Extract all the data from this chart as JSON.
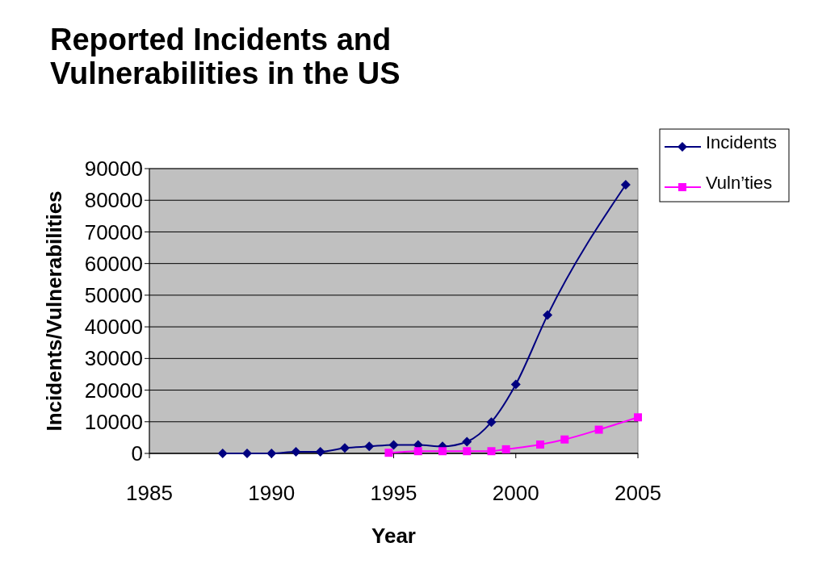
{
  "chart_data": {
    "type": "line",
    "title": "Reported Incidents and Vulnerabilities in the US",
    "xlabel": "Year",
    "ylabel": "Incidents/Vulnerabilities",
    "xlim": [
      1985,
      2005
    ],
    "xticks": [
      1985,
      1990,
      1995,
      2000,
      2005
    ],
    "ylim": [
      0,
      90000
    ],
    "yticks": [
      0,
      10000,
      20000,
      30000,
      40000,
      50000,
      60000,
      70000,
      80000,
      90000
    ],
    "grid": "y",
    "legend": "right",
    "series": [
      {
        "name": "Incidents",
        "color": "#000080",
        "marker": "diamond",
        "x": [
          1988,
          1989,
          1990,
          1991,
          1992,
          1993,
          1994,
          1995,
          1996,
          1997,
          1998,
          1999,
          2000,
          2001.3,
          2004.5
        ],
        "values": [
          0,
          0,
          0,
          500,
          500,
          1700,
          2200,
          2700,
          2700,
          2200,
          3700,
          9900,
          21800,
          43700,
          84900
        ]
      },
      {
        "name": "Vuln’ties",
        "color": "#ff00ff",
        "marker": "square",
        "x": [
          1994.8,
          1996,
          1997,
          1998,
          1999,
          1999.6,
          2001,
          2002,
          2003.4,
          2005
        ],
        "values": [
          200,
          700,
          700,
          700,
          700,
          1300,
          2800,
          4400,
          7500,
          11400
        ]
      }
    ]
  }
}
